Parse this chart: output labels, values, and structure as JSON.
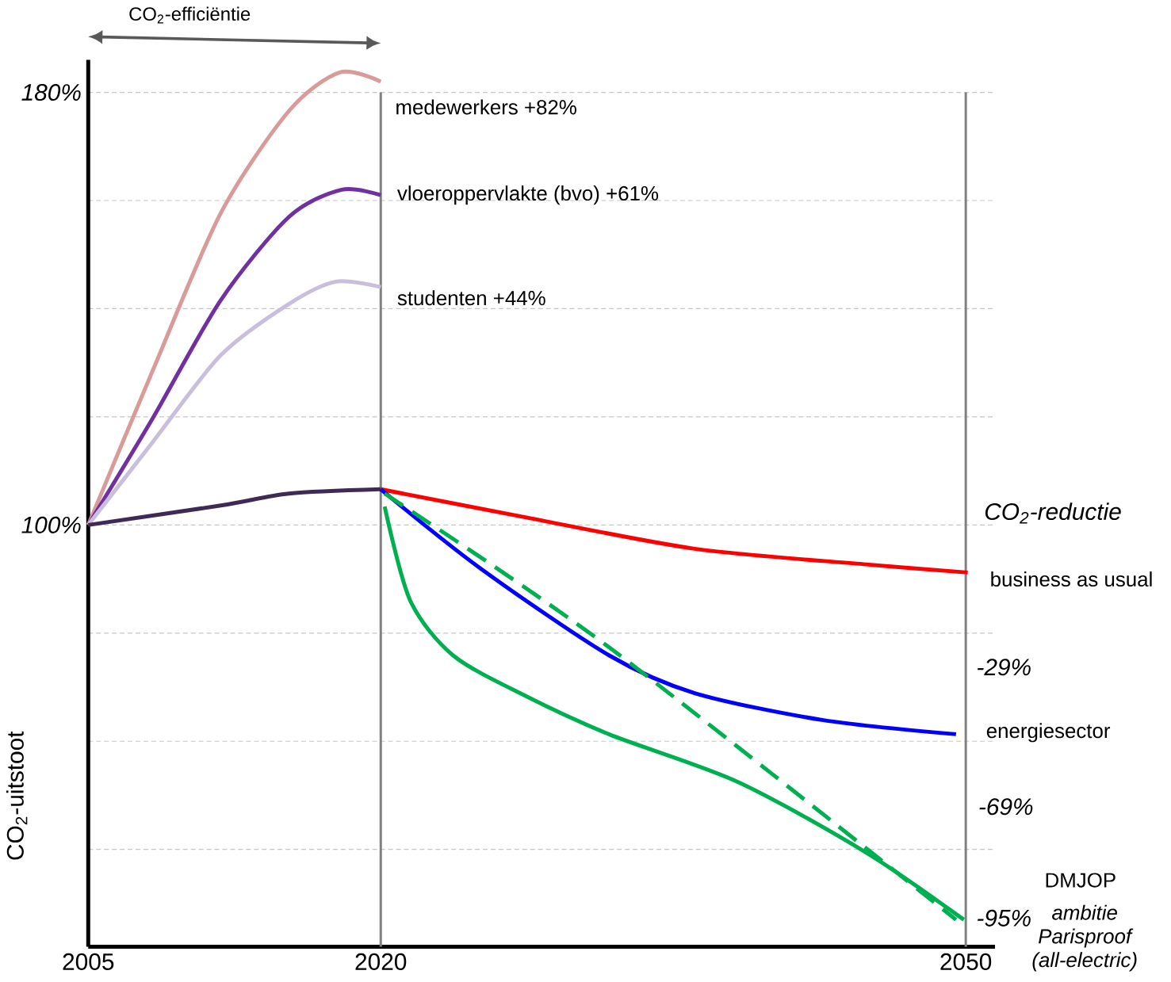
{
  "chart_data": {
    "type": "line",
    "ylabel": "CO$_{2}$-uitstoot",
    "xlim": [
      2005,
      2051.5
    ],
    "xticks": [
      2005,
      2020,
      2050
    ],
    "ylim": [
      22,
      186
    ],
    "yticks": [
      {
        "value": 40,
        "label": null
      },
      {
        "value": 60,
        "label": null
      },
      {
        "value": 80,
        "label": null
      },
      {
        "value": 100,
        "label": "100%"
      },
      {
        "value": 120,
        "label": null
      },
      {
        "value": 140,
        "label": null
      },
      {
        "value": 160,
        "label": null
      },
      {
        "value": 180,
        "label": "180%"
      }
    ],
    "grid": "y",
    "legend": false,
    "marker": "none",
    "line_style": "solid",
    "ref_lines": [
      {
        "axis": "x",
        "value": 2020,
        "color": "#808080"
      },
      {
        "axis": "x",
        "value": 2050,
        "color": "#808080"
      }
    ],
    "annotations": [
      "CO$_{2}$-efficiëntie",
      "CO$_{2}$-reductie",
      "-29%",
      "-69%",
      "-95%"
    ],
    "series": [
      {
        "name": "medewerkers +82%",
        "color": "#d99a9a",
        "x": [
          2005,
          2008.3,
          2011.8,
          2015.3,
          2017.9,
          2020
        ],
        "values": [
          100,
          128.5,
          157.7,
          176.6,
          183.7,
          182
        ]
      },
      {
        "name": "vloeroppervlakte (bvo) +61%",
        "color": "#7030a0",
        "x": [
          2005,
          2008.3,
          2011.8,
          2015.3,
          2018,
          2020
        ],
        "values": [
          100,
          119.7,
          141.6,
          157,
          162,
          161
        ]
      },
      {
        "name": "studenten +44%",
        "color": "#c9bfdd",
        "x": [
          2005,
          2008.3,
          2011.8,
          2015.3,
          2017.7,
          2020
        ],
        "values": [
          100,
          115.3,
          131.4,
          140.9,
          145,
          144
        ]
      },
      {
        "color": "#3f2a56",
        "x": [
          2005,
          2011.8,
          2015.3,
          2020
        ],
        "values": [
          100,
          103.6,
          105.8,
          106.6
        ]
      },
      {
        "name": "business as usual",
        "color": "#ff0000",
        "x": [
          2020,
          2027.3,
          2036.1,
          2044.9,
          2050.1
        ],
        "values": [
          106.6,
          101.5,
          95.6,
          92.7,
          91.2
        ]
      },
      {
        "name": "energiesector",
        "color": "#0000ff",
        "x": [
          2020,
          2025.1,
          2031.7,
          2036.1,
          2042.7,
          2049.5
        ],
        "values": [
          106.6,
          92,
          75.9,
          68.9,
          63.9,
          61.3
        ]
      },
      {
        "name": "DMJOP",
        "color": "#00b050",
        "x": [
          2020.2,
          2021.5,
          2023.7,
          2027.3,
          2031.7,
          2038.3,
          2044.9,
          2049.9
        ],
        "values": [
          103.4,
          86.1,
          75.9,
          68.6,
          61.3,
          52.5,
          39.4,
          27
        ]
      },
      {
        "name": "ambitie Parisproof (all-electric)",
        "color": "#00b050",
        "line_style": "dashed",
        "x": [
          2020.2,
          2031.7,
          2049.5
        ],
        "values": [
          105.8,
          77.4,
          27
        ]
      }
    ]
  }
}
